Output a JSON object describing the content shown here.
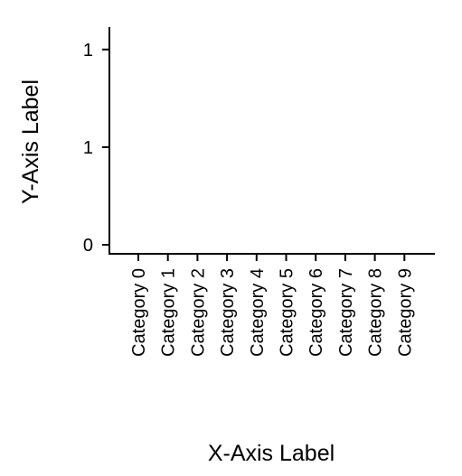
{
  "chart_data": {
    "type": "bar",
    "title": "",
    "xlabel": "X-Axis Label",
    "ylabel": "Y-Axis Label",
    "categories": [
      "Category 0",
      "Category 1",
      "Category 2",
      "Category 3",
      "Category 4",
      "Category 5",
      "Category 6",
      "Category 7",
      "Category 8",
      "Category 9"
    ],
    "values": [
      0,
      0,
      0,
      0,
      0,
      0,
      0,
      0,
      0,
      0
    ],
    "y_ticks": [
      {
        "value": 0,
        "label": "0"
      },
      {
        "value": 0.5,
        "label": "1"
      },
      {
        "value": 1,
        "label": "1"
      }
    ],
    "ylim": [
      0,
      1.05
    ],
    "grid": false,
    "legend": "none"
  }
}
